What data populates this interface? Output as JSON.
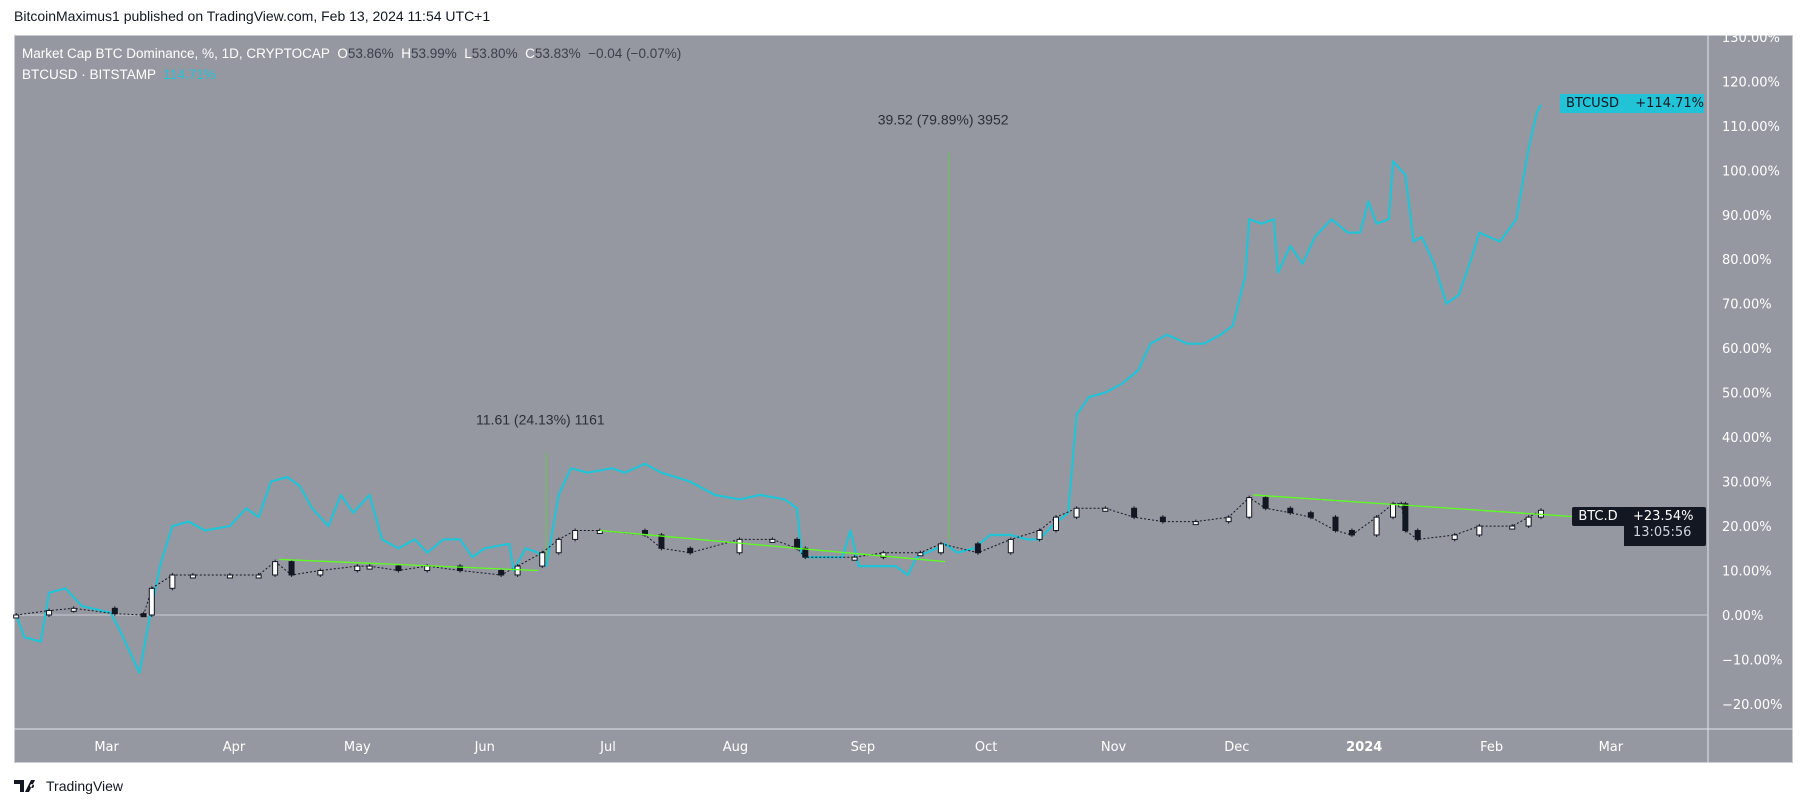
{
  "header": {
    "published": "BitcoinMaximus1 published on TradingView.com, Feb 13, 2024 11:54 UTC+1"
  },
  "legend": {
    "main_title": "Market Cap BTC Dominance, %, 1D, CRYPTOCAP",
    "open_label": "O",
    "open": "53.86%",
    "high_label": "H",
    "high": "53.99%",
    "low_label": "L",
    "low": "53.80%",
    "close_label": "C",
    "close": "53.83%",
    "change": "−0.04 (−0.07%)",
    "compare_title": "BTCUSD · BITSTAMP",
    "compare_value": "114.71%"
  },
  "badges": {
    "btcusd": {
      "label": "BTCUSD",
      "value": "+114.71%"
    },
    "btcd": {
      "label": "BTC.D",
      "value": "+23.54%",
      "countdown": "13:05:56"
    }
  },
  "footer": {
    "brand": "TradingView"
  },
  "colors": {
    "background": "#9598a1",
    "btcusd": "#22c3d6",
    "btcd": "#131722",
    "trendline": "#5dff1f",
    "badge_dark": "#131722"
  },
  "chart_data": {
    "type": "line",
    "y_scale": "percent",
    "ylim": [
      -25,
      132
    ],
    "y_ticks": [
      "130.00%",
      "120.00%",
      "110.00%",
      "100.00%",
      "90.00%",
      "80.00%",
      "70.00%",
      "60.00%",
      "50.00%",
      "40.00%",
      "30.00%",
      "20.00%",
      "10.00%",
      "0.00%",
      "−10.00%",
      "−20.00%"
    ],
    "y_tick_values": [
      130,
      120,
      110,
      100,
      90,
      80,
      70,
      60,
      50,
      40,
      30,
      20,
      10,
      0,
      -10,
      -20
    ],
    "x_range": [
      "2023-02-07",
      "2024-03-28"
    ],
    "x_ticks": [
      {
        "date": "2023-03-01",
        "label": "Mar"
      },
      {
        "date": "2023-04-01",
        "label": "Apr"
      },
      {
        "date": "2023-05-01",
        "label": "May"
      },
      {
        "date": "2023-06-01",
        "label": "Jun"
      },
      {
        "date": "2023-07-01",
        "label": "Jul"
      },
      {
        "date": "2023-08-01",
        "label": "Aug"
      },
      {
        "date": "2023-09-01",
        "label": "Sep"
      },
      {
        "date": "2023-10-01",
        "label": "Oct"
      },
      {
        "date": "2023-11-01",
        "label": "Nov"
      },
      {
        "date": "2023-12-01",
        "label": "Dec"
      },
      {
        "date": "2024-01-01",
        "label": "2024",
        "bold": true
      },
      {
        "date": "2024-02-01",
        "label": "Feb"
      },
      {
        "date": "2024-03-01",
        "label": "Mar"
      }
    ],
    "series": [
      {
        "name": "BTCUSD",
        "style": "line",
        "points": [
          [
            "2023-02-07",
            0
          ],
          [
            "2023-02-09",
            -5
          ],
          [
            "2023-02-13",
            -6
          ],
          [
            "2023-02-15",
            5
          ],
          [
            "2023-02-19",
            6
          ],
          [
            "2023-02-23",
            2
          ],
          [
            "2023-03-02",
            0.5
          ],
          [
            "2023-03-04",
            -3
          ],
          [
            "2023-03-07",
            -9
          ],
          [
            "2023-03-09",
            -13
          ],
          [
            "2023-03-11",
            -3
          ],
          [
            "2023-03-14",
            11
          ],
          [
            "2023-03-17",
            20
          ],
          [
            "2023-03-21",
            21
          ],
          [
            "2023-03-25",
            19
          ],
          [
            "2023-03-31",
            20
          ],
          [
            "2023-04-04",
            24
          ],
          [
            "2023-04-07",
            22
          ],
          [
            "2023-04-10",
            30
          ],
          [
            "2023-04-14",
            31
          ],
          [
            "2023-04-17",
            29
          ],
          [
            "2023-04-20",
            24
          ],
          [
            "2023-04-24",
            20
          ],
          [
            "2023-04-27",
            27
          ],
          [
            "2023-04-30",
            23
          ],
          [
            "2023-05-04",
            27
          ],
          [
            "2023-05-07",
            17
          ],
          [
            "2023-05-11",
            15
          ],
          [
            "2023-05-15",
            17
          ],
          [
            "2023-05-18",
            14
          ],
          [
            "2023-05-22",
            17
          ],
          [
            "2023-05-26",
            17
          ],
          [
            "2023-05-29",
            13
          ],
          [
            "2023-06-01",
            15
          ],
          [
            "2023-06-07",
            16
          ],
          [
            "2023-06-08",
            10
          ],
          [
            "2023-06-11",
            15
          ],
          [
            "2023-06-14",
            14
          ],
          [
            "2023-06-16",
            11
          ],
          [
            "2023-06-19",
            27
          ],
          [
            "2023-06-22",
            33
          ],
          [
            "2023-06-26",
            32
          ],
          [
            "2023-07-02",
            33
          ],
          [
            "2023-07-05",
            32
          ],
          [
            "2023-07-10",
            34
          ],
          [
            "2023-07-14",
            32
          ],
          [
            "2023-07-21",
            30
          ],
          [
            "2023-07-27",
            27
          ],
          [
            "2023-08-02",
            26
          ],
          [
            "2023-08-07",
            27
          ],
          [
            "2023-08-13",
            26
          ],
          [
            "2023-08-16",
            24
          ],
          [
            "2023-08-17",
            14
          ],
          [
            "2023-08-18",
            13
          ],
          [
            "2023-08-23",
            13
          ],
          [
            "2023-08-27",
            13
          ],
          [
            "2023-08-29",
            19
          ],
          [
            "2023-08-31",
            11
          ],
          [
            "2023-09-05",
            11
          ],
          [
            "2023-09-09",
            11
          ],
          [
            "2023-09-12",
            9
          ],
          [
            "2023-09-14",
            13
          ],
          [
            "2023-09-19",
            15
          ],
          [
            "2023-09-21",
            16
          ],
          [
            "2023-09-24",
            14
          ],
          [
            "2023-09-28",
            15
          ],
          [
            "2023-10-02",
            18
          ],
          [
            "2023-10-07",
            18
          ],
          [
            "2023-10-11",
            17
          ],
          [
            "2023-10-14",
            17
          ],
          [
            "2023-10-17",
            20
          ],
          [
            "2023-10-21",
            23
          ],
          [
            "2023-10-23",
            45
          ],
          [
            "2023-10-26",
            49
          ],
          [
            "2023-10-30",
            50
          ],
          [
            "2023-11-03",
            52
          ],
          [
            "2023-11-07",
            55
          ],
          [
            "2023-11-10",
            61
          ],
          [
            "2023-11-14",
            63
          ],
          [
            "2023-11-19",
            61
          ],
          [
            "2023-11-23",
            61
          ],
          [
            "2023-11-27",
            63
          ],
          [
            "2023-11-30",
            65
          ],
          [
            "2023-12-03",
            76
          ],
          [
            "2023-12-04",
            89
          ],
          [
            "2023-12-07",
            88
          ],
          [
            "2023-12-10",
            89
          ],
          [
            "2023-12-11",
            77
          ],
          [
            "2023-12-14",
            83
          ],
          [
            "2023-12-17",
            79
          ],
          [
            "2023-12-20",
            85
          ],
          [
            "2023-12-24",
            89
          ],
          [
            "2023-12-28",
            86
          ],
          [
            "2023-12-31",
            86
          ],
          [
            "2024-01-02",
            93
          ],
          [
            "2024-01-04",
            88
          ],
          [
            "2024-01-07",
            89
          ],
          [
            "2024-01-08",
            102
          ],
          [
            "2024-01-11",
            99
          ],
          [
            "2024-01-13",
            84
          ],
          [
            "2024-01-15",
            85
          ],
          [
            "2024-01-18",
            79
          ],
          [
            "2024-01-21",
            70
          ],
          [
            "2024-01-24",
            72
          ],
          [
            "2024-01-27",
            80
          ],
          [
            "2024-01-29",
            86
          ],
          [
            "2024-02-03",
            84
          ],
          [
            "2024-02-07",
            89
          ],
          [
            "2024-02-10",
            105
          ],
          [
            "2024-02-12",
            113
          ],
          [
            "2024-02-13",
            114.71
          ]
        ]
      },
      {
        "name": "BTC.D",
        "style": "candles",
        "points": [
          [
            "2023-02-07",
            0
          ],
          [
            "2023-02-15",
            1
          ],
          [
            "2023-02-21",
            1.5
          ],
          [
            "2023-03-03",
            0.3
          ],
          [
            "2023-03-10",
            0
          ],
          [
            "2023-03-12",
            6
          ],
          [
            "2023-03-17",
            9
          ],
          [
            "2023-03-22",
            9
          ],
          [
            "2023-03-31",
            9
          ],
          [
            "2023-04-07",
            9
          ],
          [
            "2023-04-11",
            12
          ],
          [
            "2023-04-15",
            9
          ],
          [
            "2023-04-22",
            10
          ],
          [
            "2023-05-01",
            11
          ],
          [
            "2023-05-04",
            11
          ],
          [
            "2023-05-11",
            10
          ],
          [
            "2023-05-18",
            11
          ],
          [
            "2023-05-26",
            10
          ],
          [
            "2023-06-05",
            9
          ],
          [
            "2023-06-09",
            11
          ],
          [
            "2023-06-15",
            14
          ],
          [
            "2023-06-19",
            17
          ],
          [
            "2023-06-23",
            19
          ],
          [
            "2023-06-29",
            19
          ],
          [
            "2023-07-10",
            18
          ],
          [
            "2023-07-14",
            15
          ],
          [
            "2023-07-21",
            14
          ],
          [
            "2023-08-02",
            17
          ],
          [
            "2023-08-10",
            17
          ],
          [
            "2023-08-16",
            15
          ],
          [
            "2023-08-18",
            13
          ],
          [
            "2023-08-30",
            13
          ],
          [
            "2023-09-06",
            14
          ],
          [
            "2023-09-15",
            14
          ],
          [
            "2023-09-20",
            16
          ],
          [
            "2023-09-29",
            14
          ],
          [
            "2023-10-07",
            17
          ],
          [
            "2023-10-14",
            19
          ],
          [
            "2023-10-18",
            22
          ],
          [
            "2023-10-23",
            24
          ],
          [
            "2023-10-30",
            24
          ],
          [
            "2023-11-06",
            22
          ],
          [
            "2023-11-13",
            21
          ],
          [
            "2023-11-21",
            21
          ],
          [
            "2023-11-29",
            22
          ],
          [
            "2023-12-04",
            26.4
          ],
          [
            "2023-12-08",
            24
          ],
          [
            "2023-12-14",
            23
          ],
          [
            "2023-12-19",
            22
          ],
          [
            "2023-12-25",
            19
          ],
          [
            "2023-12-29",
            18
          ],
          [
            "2024-01-04",
            22
          ],
          [
            "2024-01-08",
            25
          ],
          [
            "2024-01-10",
            25
          ],
          [
            "2024-01-11",
            19
          ],
          [
            "2024-01-14",
            17
          ],
          [
            "2024-01-23",
            18
          ],
          [
            "2024-01-29",
            20
          ],
          [
            "2024-02-06",
            20
          ],
          [
            "2024-02-10",
            22
          ],
          [
            "2024-02-13",
            23.54
          ]
        ]
      }
    ],
    "trendlines": [
      {
        "from": [
          "2023-04-12",
          12.5
        ],
        "to": [
          "2023-06-14",
          10
        ]
      },
      {
        "from": [
          "2023-06-29",
          19
        ],
        "to": [
          "2023-09-21",
          12
        ]
      },
      {
        "from": [
          "2023-12-05",
          27
        ],
        "to": [
          "2024-02-23",
          22
        ]
      }
    ],
    "measurements": [
      {
        "date": "2023-06-16",
        "from": 11.4,
        "to": 36.5,
        "label": "11.61 (24.13%) 1161"
      },
      {
        "date": "2023-09-22",
        "from": 16.6,
        "to": 104,
        "label": "39.52 (79.89%) 3952"
      }
    ],
    "zero_line": 0
  }
}
